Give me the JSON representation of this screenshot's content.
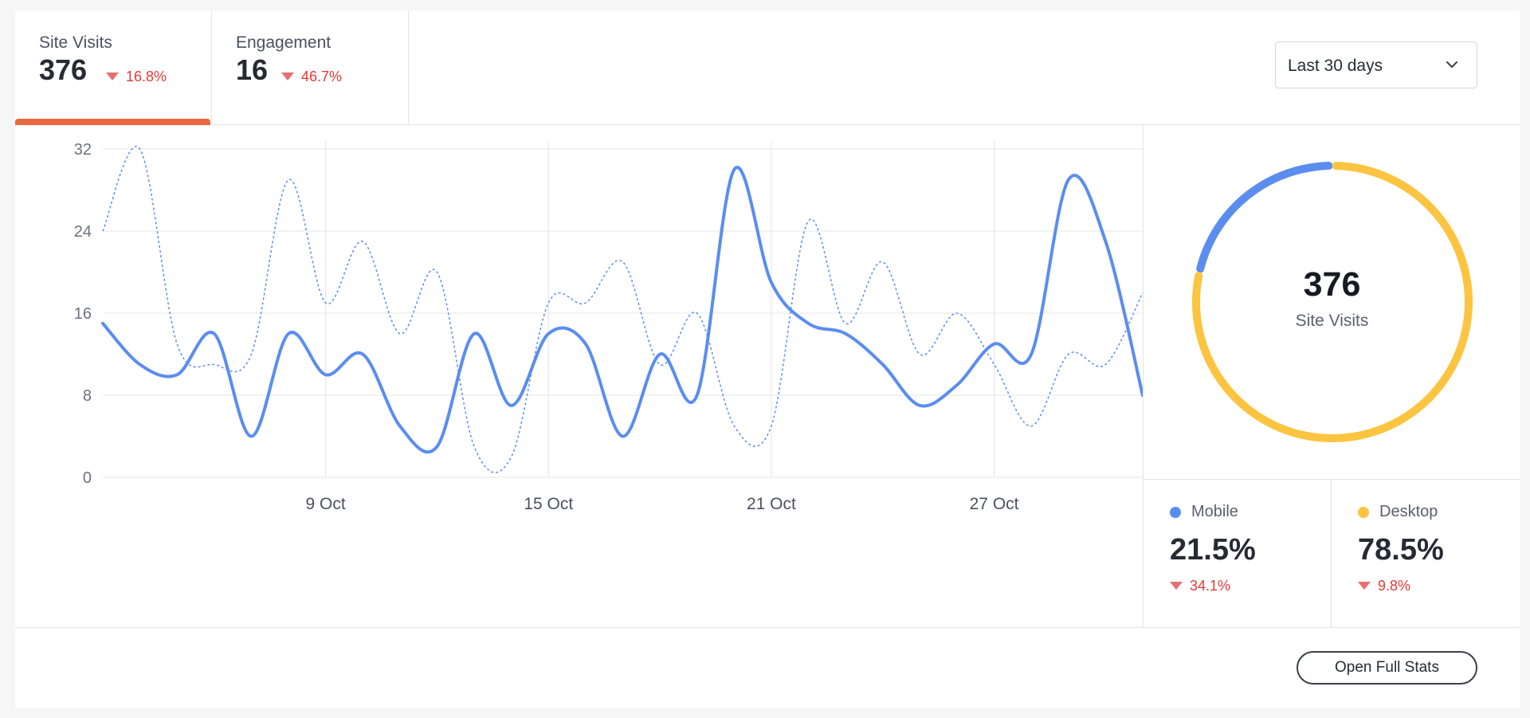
{
  "tabs": [
    {
      "label": "Site Visits",
      "value": "376",
      "delta": "16.8%",
      "trend": "down",
      "active": true
    },
    {
      "label": "Engagement",
      "value": "16",
      "delta": "46.7%",
      "trend": "down",
      "active": false
    }
  ],
  "range_select": {
    "value": "Last 30 days",
    "icon": "chevron-down-icon"
  },
  "colors": {
    "accent": "#e8693f",
    "mobile": "#5b8def",
    "desktop": "#fcc440",
    "negative": "#e53935"
  },
  "chart_data": {
    "type": "line",
    "title": "",
    "xlabel": "",
    "ylabel": "",
    "x_range": [
      "3 Oct",
      "31 Oct"
    ],
    "x": [
      "3 Oct",
      "4 Oct",
      "5 Oct",
      "6 Oct",
      "7 Oct",
      "8 Oct",
      "9 Oct",
      "10 Oct",
      "11 Oct",
      "12 Oct",
      "13 Oct",
      "14 Oct",
      "15 Oct",
      "16 Oct",
      "17 Oct",
      "18 Oct",
      "19 Oct",
      "20 Oct",
      "21 Oct",
      "22 Oct",
      "23 Oct",
      "24 Oct",
      "25 Oct",
      "26 Oct",
      "27 Oct",
      "28 Oct",
      "29 Oct",
      "30 Oct",
      "31 Oct"
    ],
    "xticks": [
      "9 Oct",
      "15 Oct",
      "21 Oct",
      "27 Oct"
    ],
    "yticks": [
      0,
      8,
      16,
      24,
      32
    ],
    "ylim": [
      0,
      32
    ],
    "grid": true,
    "series": [
      {
        "style": "solid",
        "values": [
          15,
          11,
          10,
          14,
          4,
          14,
          10,
          12,
          5,
          3,
          14,
          7,
          14,
          13,
          4,
          12,
          8,
          30,
          19,
          15,
          14,
          11,
          7,
          9,
          13,
          12,
          29,
          23,
          8
        ]
      },
      {
        "style": "dashed",
        "values": [
          24,
          32,
          13,
          11,
          12,
          29,
          17,
          23,
          14,
          20,
          3,
          2,
          17,
          17,
          21,
          11,
          16,
          5,
          5,
          25,
          15,
          21,
          12,
          16,
          11,
          5,
          12,
          11,
          18
        ]
      }
    ]
  },
  "donut": {
    "value": "376",
    "label": "Site Visits",
    "segments": [
      {
        "name": "Mobile",
        "percent": 21.5
      },
      {
        "name": "Desktop",
        "percent": 78.5
      }
    ]
  },
  "legend": [
    {
      "name": "Mobile",
      "percent": "21.5%",
      "delta": "34.1%",
      "trend": "down"
    },
    {
      "name": "Desktop",
      "percent": "78.5%",
      "delta": "9.8%",
      "trend": "down"
    }
  ],
  "footer": {
    "button_label": "Open Full Stats"
  }
}
